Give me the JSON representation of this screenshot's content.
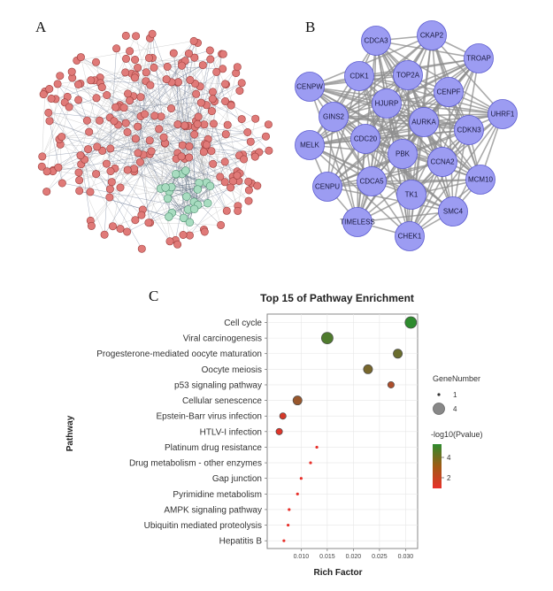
{
  "panel_labels": [
    "A",
    "B",
    "C"
  ],
  "colors": {
    "node_red": "#e07a78",
    "node_red_stroke": "#9a3c3a",
    "node_green": "#a8dcc0",
    "node_green_stroke": "#4e9070",
    "node_purple": "#9c9cf2",
    "node_purple_stroke": "#5a5ad0",
    "hub_edge": "#8e8e8e",
    "panel_border": "#888888",
    "gradient_high": "#2e8b2e",
    "gradient_low": "#e8302a"
  },
  "hub_network": {
    "nodes": [
      "CDCA3",
      "CKAP2",
      "TROAP",
      "CENPW",
      "CDK1",
      "TOP2A",
      "CENPF",
      "HJURP",
      "UHRF1",
      "GINS2",
      "AURKA",
      "CDKN3",
      "MELK",
      "CDC20",
      "PBK",
      "CCNA2",
      "CENPU",
      "CDCA5",
      "MCM10",
      "TK1",
      "SMC4",
      "TIMELESS",
      "CHEK1"
    ]
  },
  "chart_data": {
    "type": "scatter",
    "title": "Top 15 of Pathway Enrichment",
    "xlabel": "Rich Factor",
    "ylabel": "Pathway",
    "xlim": [
      0.0035,
      0.0323
    ],
    "xticks": [
      0.01,
      0.015,
      0.02,
      0.025,
      0.03
    ],
    "xtick_labels": [
      "0.010",
      "0.015",
      "0.020",
      "0.025",
      "0.030"
    ],
    "pathways": [
      "Cell cycle",
      "Viral carcinogenesis",
      "Progesterone-mediated oocyte maturation",
      "Oocyte meiosis",
      "p53 signaling pathway",
      "Cellular senescence",
      "Epstein-Barr virus infection",
      "HTLV-I infection",
      "Platinum drug resistance",
      "Drug metabolism - other enzymes",
      "Gap junction",
      "Pyrimidine metabolism",
      "AMPK signaling pathway",
      "Ubiquitin mediated proteolysis",
      "Hepatitis B"
    ],
    "rich_factor": [
      0.031,
      0.015,
      0.0285,
      0.0228,
      0.0272,
      0.0093,
      0.0065,
      0.0058,
      0.013,
      0.0118,
      0.01,
      0.0093,
      0.0077,
      0.0075,
      0.0067
    ],
    "gene_number": [
      4,
      4,
      3,
      3,
      2,
      3,
      2,
      2,
      1,
      1,
      1,
      1,
      1,
      1,
      1
    ],
    "neg_log10_pvalue": [
      5.0,
      4.3,
      3.7,
      3.4,
      2.3,
      2.7,
      1.4,
      1.2,
      1.0,
      1.0,
      1.0,
      1.0,
      1.0,
      1.0,
      1.0
    ],
    "legend": {
      "size_title": "GeneNumber",
      "size_entries": [
        "1",
        "4"
      ],
      "color_title": "-log10(Pvalue)",
      "color_ticks": [
        "4",
        "2"
      ],
      "color_range": [
        1.0,
        5.0
      ]
    }
  }
}
